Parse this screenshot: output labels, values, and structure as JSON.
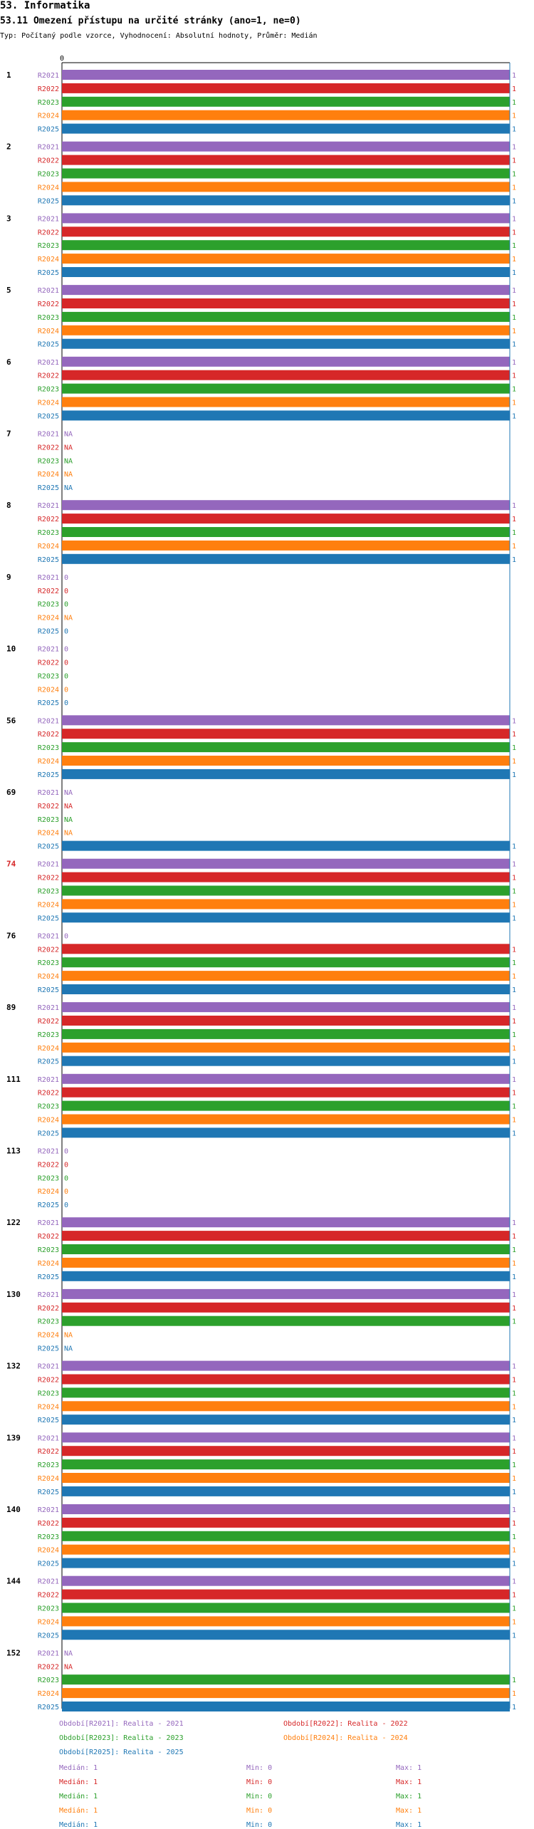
{
  "header": {
    "title": "53. Informatika",
    "subtitle": "53.11 Omezení přístupu na určité stránky (ano=1, ne=0)",
    "meta": "Typ: Počítaný podle vzorce, Vyhodnocení: Absolutní hodnoty, Průměr: Medián"
  },
  "colors": {
    "R2021": "#9467bd",
    "R2022": "#d62728",
    "R2023": "#2ca02c",
    "R2024": "#ff7f0e",
    "R2025": "#1f77b4",
    "axis": "#1f77b4",
    "highlight_group": "#d62728"
  },
  "chart_data": {
    "type": "bar",
    "orientation": "horizontal",
    "xlim": [
      0,
      1
    ],
    "x_tick_labels": [
      "0"
    ],
    "series_names": [
      "R2021",
      "R2022",
      "R2023",
      "R2024",
      "R2025"
    ],
    "highlighted_category": "74",
    "categories": [
      {
        "label": "1",
        "values": [
          1,
          1,
          1,
          1,
          1
        ]
      },
      {
        "label": "2",
        "values": [
          1,
          1,
          1,
          1,
          1
        ]
      },
      {
        "label": "3",
        "values": [
          1,
          1,
          1,
          1,
          1
        ]
      },
      {
        "label": "5",
        "values": [
          1,
          1,
          1,
          1,
          1
        ]
      },
      {
        "label": "6",
        "values": [
          1,
          1,
          1,
          1,
          1
        ]
      },
      {
        "label": "7",
        "values": [
          "NA",
          "NA",
          "NA",
          "NA",
          "NA"
        ]
      },
      {
        "label": "8",
        "values": [
          1,
          1,
          1,
          1,
          1
        ]
      },
      {
        "label": "9",
        "values": [
          0,
          0,
          0,
          "NA",
          0
        ]
      },
      {
        "label": "10",
        "values": [
          0,
          0,
          0,
          0,
          0
        ]
      },
      {
        "label": "56",
        "values": [
          1,
          1,
          1,
          1,
          1
        ]
      },
      {
        "label": "69",
        "values": [
          "NA",
          "NA",
          "NA",
          "NA",
          1
        ]
      },
      {
        "label": "74",
        "values": [
          1,
          1,
          1,
          1,
          1
        ]
      },
      {
        "label": "76",
        "values": [
          0,
          1,
          1,
          1,
          1
        ]
      },
      {
        "label": "89",
        "values": [
          1,
          1,
          1,
          1,
          1
        ]
      },
      {
        "label": "111",
        "values": [
          1,
          1,
          1,
          1,
          1
        ]
      },
      {
        "label": "113",
        "values": [
          0,
          0,
          0,
          0,
          0
        ]
      },
      {
        "label": "122",
        "values": [
          1,
          1,
          1,
          1,
          1
        ]
      },
      {
        "label": "130",
        "values": [
          1,
          1,
          1,
          "NA",
          "NA"
        ]
      },
      {
        "label": "132",
        "values": [
          1,
          1,
          1,
          1,
          1
        ]
      },
      {
        "label": "139",
        "values": [
          1,
          1,
          1,
          1,
          1
        ]
      },
      {
        "label": "140",
        "values": [
          1,
          1,
          1,
          1,
          1
        ]
      },
      {
        "label": "144",
        "values": [
          1,
          1,
          1,
          1,
          1
        ]
      },
      {
        "label": "152",
        "values": [
          "NA",
          "NA",
          1,
          1,
          1
        ]
      }
    ]
  },
  "legend": {
    "periods": [
      {
        "series": "R2021",
        "text": "Období[R2021]: Realita - 2021"
      },
      {
        "series": "R2022",
        "text": "Období[R2022]: Realita - 2022"
      },
      {
        "series": "R2023",
        "text": "Období[R2023]: Realita - 2023"
      },
      {
        "series": "R2024",
        "text": "Období[R2024]: Realita - 2024"
      },
      {
        "series": "R2025",
        "text": "Období[R2025]: Realita - 2025"
      }
    ],
    "stats": [
      {
        "series": "R2021",
        "median": "Medián: 1",
        "min": "Min: 0",
        "max": "Max: 1"
      },
      {
        "series": "R2022",
        "median": "Medián: 1",
        "min": "Min: 0",
        "max": "Max: 1"
      },
      {
        "series": "R2023",
        "median": "Medián: 1",
        "min": "Min: 0",
        "max": "Max: 1"
      },
      {
        "series": "R2024",
        "median": "Medián: 1",
        "min": "Min: 0",
        "max": "Max: 1"
      },
      {
        "series": "R2025",
        "median": "Medián: 1",
        "min": "Min: 0",
        "max": "Max: 1"
      }
    ]
  }
}
